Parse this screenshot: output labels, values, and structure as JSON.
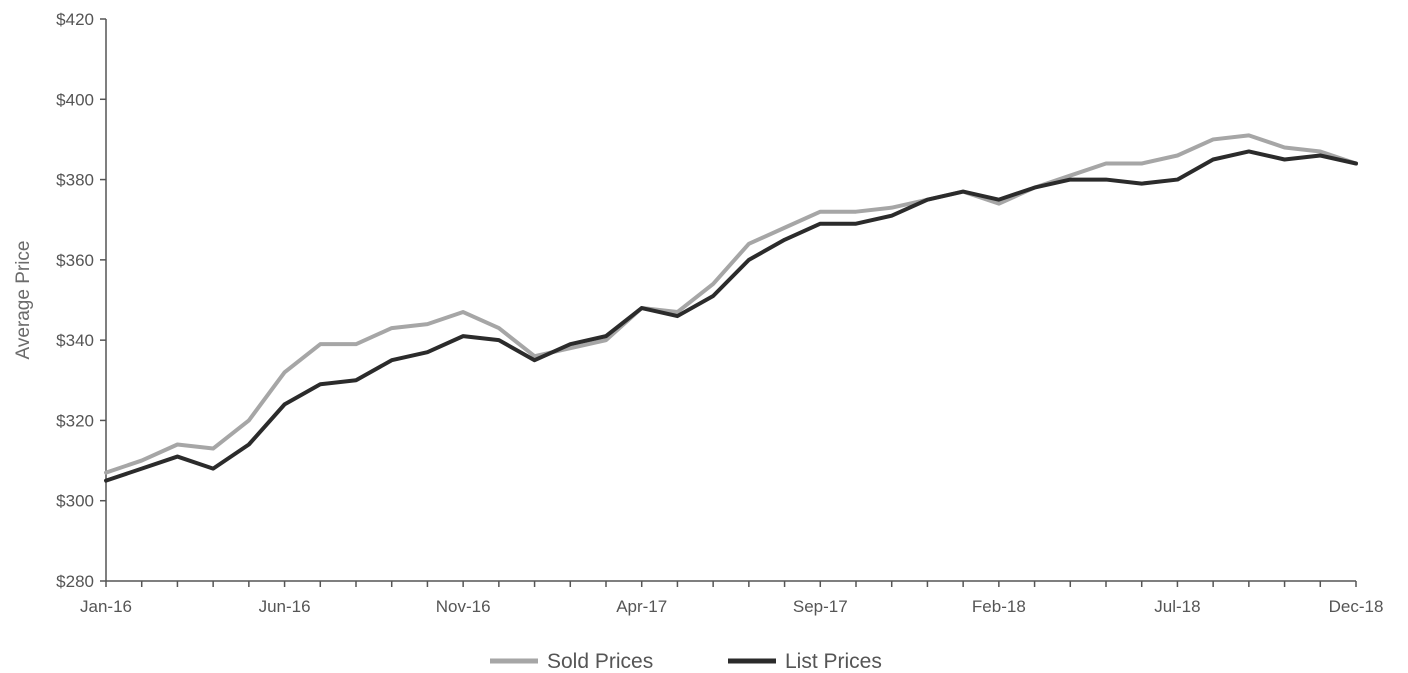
{
  "chart_data": {
    "type": "line",
    "title": "",
    "xlabel": "",
    "ylabel": "Average Price",
    "ylim": [
      280,
      420
    ],
    "y_ticks": [
      280,
      300,
      320,
      340,
      360,
      380,
      400,
      420
    ],
    "y_tick_labels": [
      "$280",
      "$300",
      "$320",
      "$340",
      "$360",
      "$380",
      "$400",
      "$420"
    ],
    "grid": false,
    "legend_position": "bottom",
    "x": [
      "Jan-16",
      "Feb-16",
      "Mar-16",
      "Apr-16",
      "May-16",
      "Jun-16",
      "Jul-16",
      "Aug-16",
      "Sep-16",
      "Oct-16",
      "Nov-16",
      "Dec-16",
      "Jan-17",
      "Feb-17",
      "Mar-17",
      "Apr-17",
      "May-17",
      "Jun-17",
      "Jul-17",
      "Aug-17",
      "Sep-17",
      "Oct-17",
      "Nov-17",
      "Dec-17",
      "Jan-18",
      "Feb-18",
      "Mar-18",
      "Apr-18",
      "May-18",
      "Jun-18",
      "Jul-18",
      "Aug-18",
      "Sep-18",
      "Oct-18",
      "Nov-18",
      "Dec-18"
    ],
    "x_tick_labels": [
      "Jan-16",
      "Jun-16",
      "Nov-16",
      "Apr-17",
      "Sep-17",
      "Feb-18",
      "Jul-18",
      "Dec-18"
    ],
    "series": [
      {
        "name": "Sold Prices",
        "color": "#a6a6a6",
        "values": [
          307,
          310,
          314,
          313,
          320,
          332,
          339,
          339,
          343,
          344,
          347,
          343,
          336,
          338,
          340,
          348,
          347,
          354,
          364,
          368,
          372,
          372,
          373,
          375,
          377,
          374,
          378,
          381,
          384,
          384,
          386,
          390,
          391,
          388,
          387,
          384
        ]
      },
      {
        "name": "List Prices",
        "color": "#2b2b2b",
        "values": [
          305,
          308,
          311,
          308,
          314,
          324,
          329,
          330,
          335,
          337,
          341,
          340,
          335,
          339,
          341,
          348,
          346,
          351,
          360,
          365,
          369,
          369,
          371,
          375,
          377,
          375,
          378,
          380,
          380,
          379,
          380,
          385,
          387,
          385,
          386,
          384
        ]
      }
    ]
  }
}
